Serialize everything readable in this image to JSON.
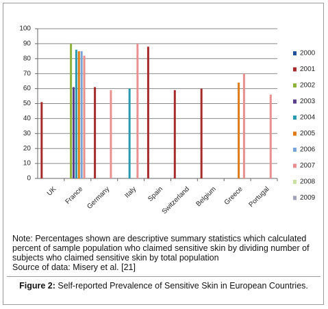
{
  "chart_data": {
    "type": "bar",
    "categories": [
      "UK",
      "France",
      "Germany",
      "Italy",
      "Spain",
      "Switzerland",
      "Belgium",
      "Greece",
      "Portugal"
    ],
    "series": [
      {
        "name": "2000",
        "color": "#1f4e9a",
        "values": [
          null,
          null,
          null,
          null,
          null,
          null,
          null,
          null,
          null
        ]
      },
      {
        "name": "2001",
        "color": "#a52a2a",
        "values": [
          51,
          null,
          61,
          null,
          88,
          59,
          60,
          null,
          null
        ]
      },
      {
        "name": "2002",
        "color": "#8db33a",
        "values": [
          null,
          90,
          null,
          null,
          null,
          null,
          null,
          null,
          null
        ]
      },
      {
        "name": "2003",
        "color": "#5a3e8a",
        "values": [
          null,
          61,
          null,
          null,
          null,
          null,
          null,
          null,
          null
        ]
      },
      {
        "name": "2004",
        "color": "#2a9ab0",
        "values": [
          null,
          86,
          null,
          60,
          null,
          null,
          null,
          null,
          null
        ]
      },
      {
        "name": "2005",
        "color": "#e07b1a",
        "values": [
          null,
          85,
          null,
          null,
          null,
          null,
          null,
          64,
          null
        ]
      },
      {
        "name": "2006",
        "color": "#7aa3d8",
        "values": [
          null,
          85,
          null,
          null,
          null,
          null,
          null,
          null,
          null
        ]
      },
      {
        "name": "2007",
        "color": "#e89090",
        "values": [
          null,
          82,
          59,
          90,
          null,
          null,
          null,
          70,
          56
        ]
      },
      {
        "name": "2008",
        "color": "#c8e0a0",
        "values": [
          null,
          null,
          null,
          null,
          null,
          null,
          null,
          null,
          null
        ]
      },
      {
        "name": "2009",
        "color": "#a0a0b8",
        "values": [
          null,
          null,
          null,
          null,
          null,
          null,
          null,
          null,
          null
        ]
      }
    ],
    "ylim": [
      0,
      100
    ],
    "yticks": [
      0,
      10,
      20,
      30,
      40,
      50,
      60,
      70,
      80,
      90,
      100
    ],
    "grid": true,
    "legend": "right"
  },
  "note": "Note: Percentages shown are descriptive summary statistics which calculated percent of sample population who claimed sensitive skin by dividing number of subjects who claimed sensitive skin by total population",
  "source": "Source of data: Misery et al. [21]",
  "figure_label": "Figure 2:",
  "caption": "Self-reported Prevalence of Sensitive Skin in European Countries."
}
